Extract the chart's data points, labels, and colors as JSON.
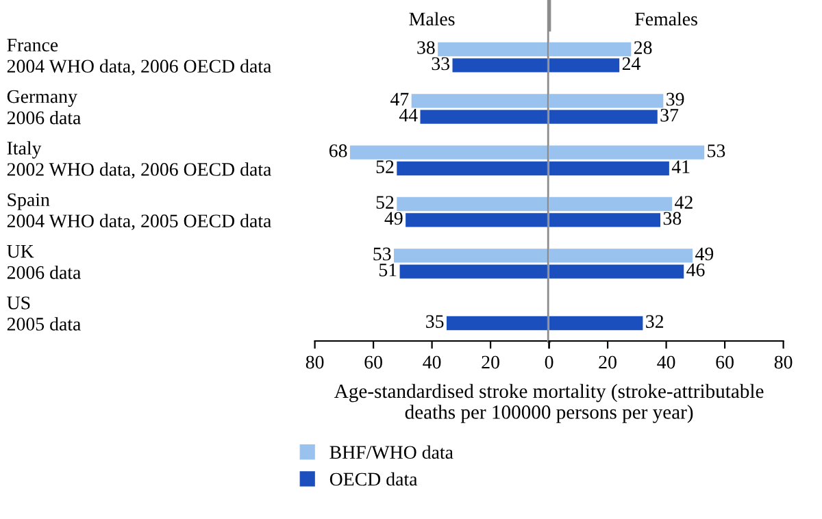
{
  "chart_data": [
    {
      "type": "bar",
      "orientation": "horizontal",
      "title": "Males",
      "categories": [
        "France\n2004 WHO data, 2006 OECD data",
        "Germany\n2006 data",
        "Italy\n2002 WHO data, 2006 OECD data",
        "Spain\n2004 WHO data, 2005 OECD data",
        "UK\n2006 data",
        "US\n2005 data"
      ],
      "series": [
        {
          "name": "BHF/WHO data",
          "color": "#99c2ee",
          "values": [
            38,
            47,
            68,
            52,
            53,
            null
          ]
        },
        {
          "name": "OECD data",
          "color": "#1a4fbd",
          "values": [
            33,
            44,
            52,
            49,
            51,
            35
          ]
        }
      ],
      "xlim": [
        80,
        0
      ],
      "xticks": [
        80,
        60,
        40,
        20,
        0
      ],
      "xlabel": "Age-standardised stroke mortality (stroke-attributable\ndeaths per 100000 persons per year)",
      "ref_lines": [
        {
          "axis": "x",
          "value": 0,
          "color": "#8c8c8c"
        }
      ],
      "data_labels": true,
      "legend": "bottom",
      "grid": false
    },
    {
      "type": "bar",
      "orientation": "horizontal",
      "title": "Females",
      "series": [
        {
          "color": "#99c2ee",
          "values": [
            28,
            39,
            53,
            42,
            49,
            null
          ]
        },
        {
          "color": "#1a4fbd",
          "values": [
            24,
            37,
            41,
            38,
            46,
            32
          ]
        }
      ],
      "xlim": [
        0,
        80
      ],
      "xticks": [
        {
          "value": 0,
          "label": null
        },
        20,
        40,
        60,
        80
      ],
      "tick_labels": "x",
      "data_labels": true,
      "grid": false
    }
  ]
}
